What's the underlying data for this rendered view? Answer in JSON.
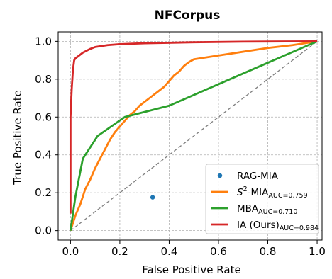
{
  "chart_data": {
    "type": "line",
    "title": "NFCorpus",
    "xlabel": "False Positive Rate",
    "ylabel": "True Positive Rate",
    "xlim": [
      -0.05,
      1.02
    ],
    "ylim": [
      -0.05,
      1.05
    ],
    "xticks": [
      "0.0",
      "0.2",
      "0.4",
      "0.6",
      "0.8",
      "1.0"
    ],
    "yticks": [
      "0.0",
      "0.2",
      "0.4",
      "0.6",
      "0.8",
      "1.0"
    ],
    "grid": true,
    "legend_position": "lower-right",
    "diagonal": {
      "x": [
        0,
        1
      ],
      "y": [
        0,
        1
      ],
      "color": "#7f7f7f",
      "style": "dashed"
    },
    "series": [
      {
        "name": "RAG-MIA",
        "kind": "point",
        "color": "#1f77b4",
        "x": [
          0.333
        ],
        "y": [
          0.176
        ]
      },
      {
        "name": "S²-MIA",
        "name_prefix": "S",
        "name_sup": "2",
        "name_main": "-MIA",
        "name_sub": "AUC=0.759",
        "kind": "line",
        "color": "#ff7f0e",
        "x": [
          0.0,
          0.01,
          0.02,
          0.04,
          0.06,
          0.08,
          0.1,
          0.12,
          0.14,
          0.16,
          0.18,
          0.2,
          0.22,
          0.24,
          0.26,
          0.28,
          0.3,
          0.32,
          0.34,
          0.36,
          0.38,
          0.4,
          0.42,
          0.44,
          0.46,
          0.48,
          0.5,
          0.6,
          0.7,
          0.8,
          0.9,
          1.0
        ],
        "y": [
          0.0,
          0.04,
          0.08,
          0.14,
          0.22,
          0.27,
          0.33,
          0.38,
          0.43,
          0.48,
          0.52,
          0.55,
          0.58,
          0.61,
          0.63,
          0.66,
          0.68,
          0.7,
          0.72,
          0.74,
          0.76,
          0.79,
          0.82,
          0.84,
          0.87,
          0.89,
          0.905,
          0.925,
          0.945,
          0.965,
          0.98,
          1.0
        ]
      },
      {
        "name": "MBA",
        "name_main": "MBA",
        "name_sub": "AUC=0.710",
        "kind": "line",
        "color": "#2ca02c",
        "x": [
          0.0,
          0.02,
          0.05,
          0.11,
          0.22,
          0.4,
          1.0
        ],
        "y": [
          0.0,
          0.18,
          0.38,
          0.5,
          0.6,
          0.66,
          1.0
        ]
      },
      {
        "name": "IA (Ours)",
        "name_main": "IA (Ours)",
        "name_sub": "AUC=0.984",
        "kind": "line",
        "color": "#d62728",
        "x": [
          0.0,
          0.0,
          0.005,
          0.01,
          0.015,
          0.02,
          0.03,
          0.05,
          0.08,
          0.1,
          0.15,
          0.2,
          0.3,
          0.5,
          0.7,
          1.0
        ],
        "y": [
          0.09,
          0.6,
          0.75,
          0.85,
          0.9,
          0.91,
          0.92,
          0.94,
          0.96,
          0.97,
          0.98,
          0.985,
          0.99,
          0.995,
          0.998,
          1.0
        ]
      }
    ]
  }
}
